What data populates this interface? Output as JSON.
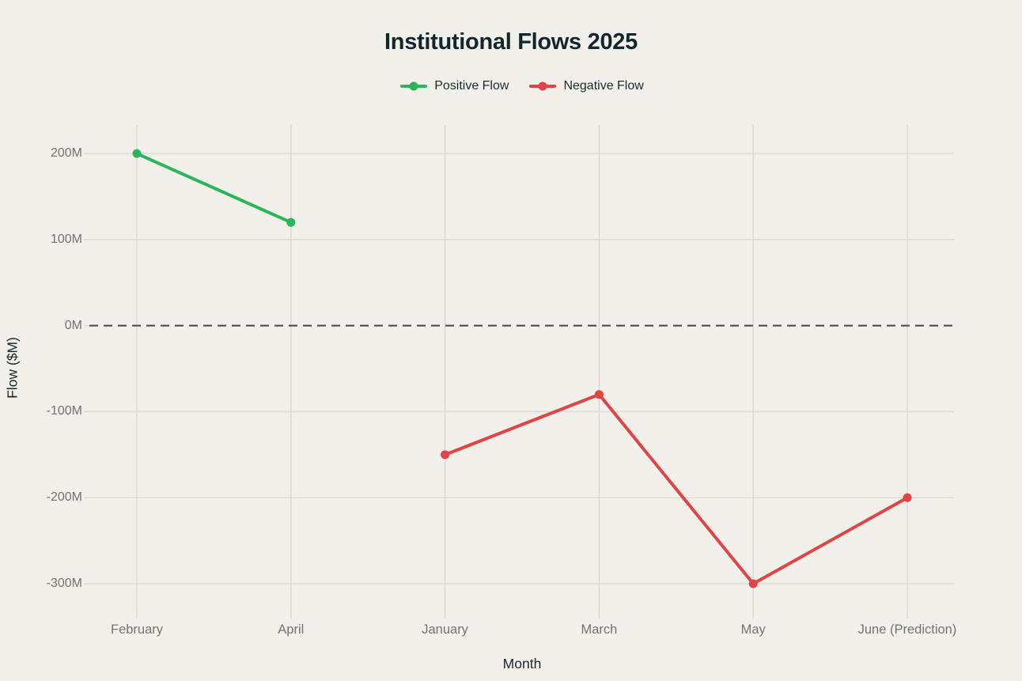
{
  "page": {
    "background": "#f1f0ea"
  },
  "chart_data": {
    "type": "line",
    "title": "Institutional Flows 2025",
    "xlabel": "Month",
    "ylabel": "Flow ($M)",
    "categories": [
      "February",
      "April",
      "January",
      "March",
      "May",
      "June (Prediction)"
    ],
    "series": [
      {
        "name": "Positive Flow",
        "color": "#2bb558",
        "values": [
          200,
          120,
          null,
          null,
          null,
          null
        ]
      },
      {
        "name": "Negative Flow",
        "color": "#e14444",
        "values": [
          null,
          null,
          -150,
          -80,
          -300,
          -200
        ]
      }
    ],
    "y_ticks": [
      200,
      100,
      0,
      -100,
      -200,
      -300
    ],
    "y_tick_labels": [
      "200M",
      "100M",
      "0M",
      "-100M",
      "-200M",
      "-300M"
    ],
    "ylim": [
      -334,
      236
    ],
    "zero_line": {
      "value": 0,
      "style": "dashed",
      "color": "#4d4d4d"
    },
    "grid": true,
    "legend_position": "top",
    "colors": {
      "title_text": "#13262c",
      "legend_text": "#1c2b2e",
      "axis_title_text": "#1d2527",
      "tick_text": "#73736f",
      "gridline": "#d9d8d0"
    }
  }
}
